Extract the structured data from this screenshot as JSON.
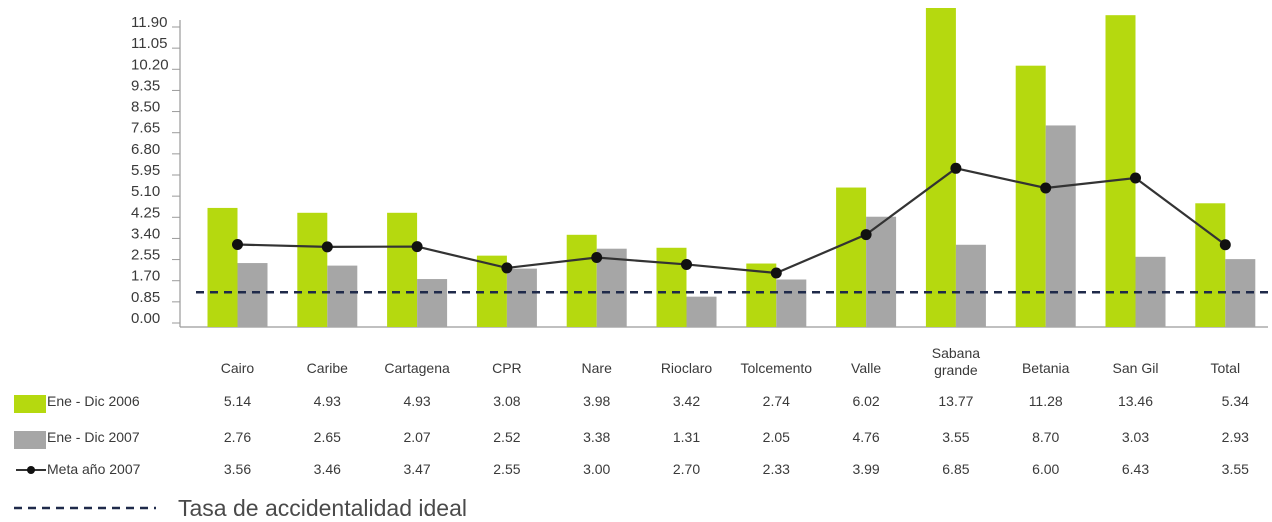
{
  "chart_data": {
    "type": "bar",
    "categories": [
      "Cairo",
      "Caribe",
      "Cartagena",
      "CPR",
      "Nare",
      "Rioclaro",
      "Tolcemento",
      "Valle",
      "Sabana grande",
      "Betania",
      "San Gil",
      "Total"
    ],
    "category_lines": [
      [
        "Cairo"
      ],
      [
        "Caribe"
      ],
      [
        "Cartagena"
      ],
      [
        "CPR"
      ],
      [
        "Nare"
      ],
      [
        "Rioclaro"
      ],
      [
        "Tolcemento"
      ],
      [
        "Valle"
      ],
      [
        "Sabana",
        "grande"
      ],
      [
        "Betania"
      ],
      [
        "San Gil"
      ],
      [
        "Total"
      ]
    ],
    "series": [
      {
        "name": "Ene - Dic 2006",
        "kind": "bar",
        "color": "#b5d90f",
        "values": [
          5.14,
          4.93,
          4.93,
          3.08,
          3.98,
          3.42,
          2.74,
          6.02,
          13.77,
          11.28,
          13.46,
          5.34
        ],
        "labels": [
          "5.14",
          "4.93",
          "4.93",
          "3.08",
          "3.98",
          "3.42",
          "2.74",
          "6.02",
          "13.77",
          "11.28",
          "13.46",
          "5.34"
        ]
      },
      {
        "name": "Ene - Dic 2007",
        "kind": "bar",
        "color": "#a6a6a6",
        "values": [
          2.76,
          2.65,
          2.07,
          2.52,
          3.38,
          1.31,
          2.05,
          4.76,
          3.55,
          8.7,
          3.03,
          2.93
        ],
        "labels": [
          "2.76",
          "2.65",
          "2.07",
          "2.52",
          "3.38",
          "1.31",
          "2.05",
          "4.76",
          "3.55",
          "8.70",
          "3.03",
          "2.93"
        ]
      },
      {
        "name": "Meta año 2007",
        "kind": "line",
        "color": "#333333",
        "values": [
          3.56,
          3.46,
          3.47,
          2.55,
          3.0,
          2.7,
          2.33,
          3.99,
          6.85,
          6.0,
          6.43,
          3.55
        ],
        "labels": [
          "3.56",
          "3.46",
          "3.47",
          "2.55",
          "3.00",
          "2.70",
          "2.33",
          "3.99",
          "6.85",
          "6.00",
          "6.43",
          "3.55"
        ]
      }
    ],
    "reference_line": {
      "label": "Tasa de accidentalidad ideal",
      "value": 1.5,
      "color": "#1f2a4a",
      "style": "dashed"
    },
    "y_ticks": [
      "0.00",
      "0.85",
      "1.70",
      "2.55",
      "3.40",
      "4.25",
      "5.10",
      "5.95",
      "6.80",
      "7.65",
      "8.50",
      "9.35",
      "10.20",
      "11.05",
      "11.90"
    ],
    "ylim": [
      0,
      13.77
    ],
    "legend_placement": "data-table-below",
    "grid": false
  }
}
